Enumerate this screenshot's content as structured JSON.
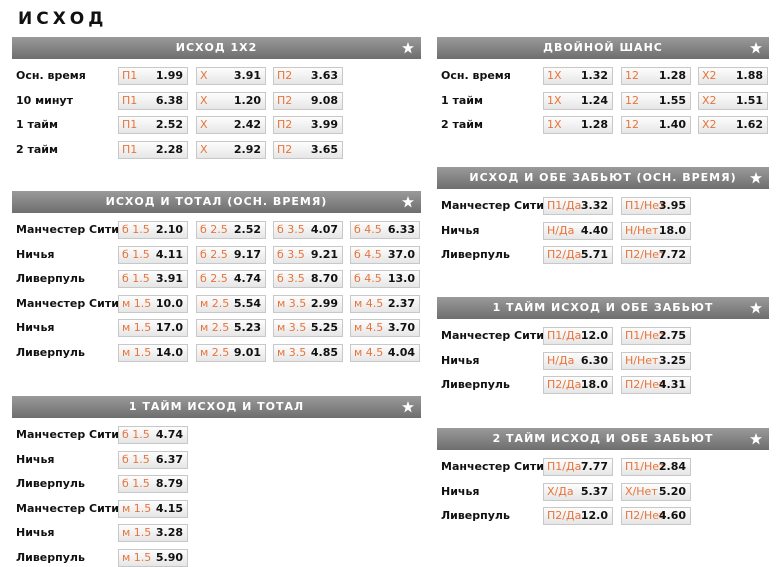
{
  "title": "ИСХОД",
  "sections": [
    {
      "title": "ИСХОД 1Х2",
      "rows": [
        {
          "label": "Осн. время",
          "cells": [
            {
              "name": "П1",
              "odd": "1.99"
            },
            {
              "name": "Х",
              "odd": "3.91"
            },
            {
              "name": "П2",
              "odd": "3.63"
            }
          ]
        },
        {
          "label": "10 минут",
          "cells": [
            {
              "name": "П1",
              "odd": "6.38"
            },
            {
              "name": "Х",
              "odd": "1.20"
            },
            {
              "name": "П2",
              "odd": "9.08"
            }
          ]
        },
        {
          "label": "1 тайм",
          "cells": [
            {
              "name": "П1",
              "odd": "2.52"
            },
            {
              "name": "Х",
              "odd": "2.42"
            },
            {
              "name": "П2",
              "odd": "3.99"
            }
          ]
        },
        {
          "label": "2 тайм",
          "cells": [
            {
              "name": "П1",
              "odd": "2.28"
            },
            {
              "name": "Х",
              "odd": "2.92"
            },
            {
              "name": "П2",
              "odd": "3.65"
            }
          ]
        }
      ]
    },
    {
      "title": "ИСХОД И ТОТАЛ (ОСН. ВРЕМЯ)",
      "rows": [
        {
          "label": "Манчестер Сити",
          "cells": [
            {
              "name": "б 1.5",
              "odd": "2.10"
            },
            {
              "name": "б 2.5",
              "odd": "2.52"
            },
            {
              "name": "б 3.5",
              "odd": "4.07"
            },
            {
              "name": "б 4.5",
              "odd": "6.33"
            }
          ]
        },
        {
          "label": "Ничья",
          "cells": [
            {
              "name": "б 1.5",
              "odd": "4.11"
            },
            {
              "name": "б 2.5",
              "odd": "9.17"
            },
            {
              "name": "б 3.5",
              "odd": "9.21"
            },
            {
              "name": "б 4.5",
              "odd": "37.0"
            }
          ]
        },
        {
          "label": "Ливерпуль",
          "cells": [
            {
              "name": "б 1.5",
              "odd": "3.91"
            },
            {
              "name": "б 2.5",
              "odd": "4.74"
            },
            {
              "name": "б 3.5",
              "odd": "8.70"
            },
            {
              "name": "б 4.5",
              "odd": "13.0"
            }
          ]
        },
        {
          "label": "Манчестер Сити",
          "cells": [
            {
              "name": "м 1.5",
              "odd": "10.0"
            },
            {
              "name": "м 2.5",
              "odd": "5.54"
            },
            {
              "name": "м 3.5",
              "odd": "2.99"
            },
            {
              "name": "м 4.5",
              "odd": "2.37"
            }
          ]
        },
        {
          "label": "Ничья",
          "cells": [
            {
              "name": "м 1.5",
              "odd": "17.0"
            },
            {
              "name": "м 2.5",
              "odd": "5.23"
            },
            {
              "name": "м 3.5",
              "odd": "5.25"
            },
            {
              "name": "м 4.5",
              "odd": "3.70"
            }
          ]
        },
        {
          "label": "Ливерпуль",
          "cells": [
            {
              "name": "м 1.5",
              "odd": "14.0"
            },
            {
              "name": "м 2.5",
              "odd": "9.01"
            },
            {
              "name": "м 3.5",
              "odd": "4.85"
            },
            {
              "name": "м 4.5",
              "odd": "4.04"
            }
          ]
        }
      ]
    },
    {
      "title": "1 ТАЙМ ИСХОД И ТОТАЛ",
      "rows": [
        {
          "label": "Манчестер Сити",
          "cells": [
            {
              "name": "б 1.5",
              "odd": "4.74"
            }
          ]
        },
        {
          "label": "Ничья",
          "cells": [
            {
              "name": "б 1.5",
              "odd": "6.37"
            }
          ]
        },
        {
          "label": "Ливерпуль",
          "cells": [
            {
              "name": "б 1.5",
              "odd": "8.79"
            }
          ]
        },
        {
          "label": "Манчестер Сити",
          "cells": [
            {
              "name": "м 1.5",
              "odd": "4.15"
            }
          ]
        },
        {
          "label": "Ничья",
          "cells": [
            {
              "name": "м 1.5",
              "odd": "3.28"
            }
          ]
        },
        {
          "label": "Ливерпуль",
          "cells": [
            {
              "name": "м 1.5",
              "odd": "5.90"
            }
          ]
        }
      ]
    },
    {
      "title": "ДВОЙНОЙ ШАНС",
      "rows": [
        {
          "label": "Осн. время",
          "cells": [
            {
              "name": "1X",
              "odd": "1.32"
            },
            {
              "name": "12",
              "odd": "1.28"
            },
            {
              "name": "X2",
              "odd": "1.88"
            }
          ]
        },
        {
          "label": "1 тайм",
          "cells": [
            {
              "name": "1X",
              "odd": "1.24"
            },
            {
              "name": "12",
              "odd": "1.55"
            },
            {
              "name": "X2",
              "odd": "1.51"
            }
          ]
        },
        {
          "label": "2 тайм",
          "cells": [
            {
              "name": "1X",
              "odd": "1.28"
            },
            {
              "name": "12",
              "odd": "1.40"
            },
            {
              "name": "X2",
              "odd": "1.62"
            }
          ]
        }
      ]
    },
    {
      "title": "ИСХОД И ОБЕ ЗАБЬЮТ (ОСН. ВРЕМЯ)",
      "rows": [
        {
          "label": "Манчестер Сити",
          "cells": [
            {
              "name": "П1/Да",
              "odd": "3.32"
            },
            {
              "name": "П1/Нет",
              "odd": "3.95"
            }
          ]
        },
        {
          "label": "Ничья",
          "cells": [
            {
              "name": "Н/Да",
              "odd": "4.40"
            },
            {
              "name": "Н/Нет",
              "odd": "18.0"
            }
          ]
        },
        {
          "label": "Ливерпуль",
          "cells": [
            {
              "name": "П2/Да",
              "odd": "5.71"
            },
            {
              "name": "П2/Нет",
              "odd": "7.72"
            }
          ]
        }
      ]
    },
    {
      "title": "1 ТАЙМ ИСХОД И ОБЕ ЗАБЬЮТ",
      "rows": [
        {
          "label": "Манчестер Сити",
          "cells": [
            {
              "name": "П1/Да",
              "odd": "12.0"
            },
            {
              "name": "П1/Нет",
              "odd": "2.75"
            }
          ]
        },
        {
          "label": "Ничья",
          "cells": [
            {
              "name": "Н/Да",
              "odd": "6.30"
            },
            {
              "name": "Н/Нет",
              "odd": "3.25"
            }
          ]
        },
        {
          "label": "Ливерпуль",
          "cells": [
            {
              "name": "П2/Да",
              "odd": "18.0"
            },
            {
              "name": "П2/Нет",
              "odd": "4.31"
            }
          ]
        }
      ]
    },
    {
      "title": "2 ТАЙМ ИСХОД И ОБЕ ЗАБЬЮТ",
      "rows": [
        {
          "label": "Манчестер Сити",
          "cells": [
            {
              "name": "П1/Да",
              "odd": "7.77"
            },
            {
              "name": "П1/Нет",
              "odd": "2.84"
            }
          ]
        },
        {
          "label": "Ничья",
          "cells": [
            {
              "name": "Х/Да",
              "odd": "5.37"
            },
            {
              "name": "Х/Нет",
              "odd": "5.20"
            }
          ]
        },
        {
          "label": "Ливерпуль",
          "cells": [
            {
              "name": "П2/Да",
              "odd": "12.0"
            },
            {
              "name": "П2/Нет",
              "odd": "4.60"
            }
          ]
        }
      ]
    }
  ]
}
